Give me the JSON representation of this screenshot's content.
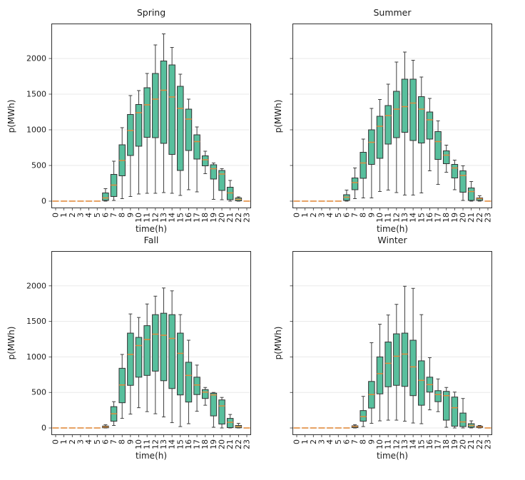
{
  "style": {
    "background": "#ffffff",
    "box_fill": "#58bf9d",
    "box_edge": "#333333",
    "median_color": "#e08b3d",
    "whisker_color": "#3f3f3f",
    "grid_color": "#eaeaea",
    "spine_color": "#2f2f2f",
    "text_color": "#1c1c1c"
  },
  "box_format": [
    "whislo",
    "q1",
    "median",
    "q3",
    "whishi"
  ],
  "chart_data": [
    {
      "type": "box",
      "title": "Spring",
      "xlabel": "time(h)",
      "ylabel": "p(MWh)",
      "grid": "horizontal",
      "legend": "none",
      "categories": [
        "0",
        "1",
        "2",
        "3",
        "4",
        "5",
        "6",
        "7",
        "8",
        "9",
        "10",
        "11",
        "12",
        "13",
        "14",
        "15",
        "16",
        "17",
        "18",
        "19",
        "20",
        "21",
        "22",
        "23"
      ],
      "yticks": [
        0,
        500,
        1000,
        1500,
        2000
      ],
      "ytick_labels_visible": true,
      "ylim": [
        -100,
        2490
      ],
      "boxes": [
        [
          0,
          0,
          0,
          0,
          0
        ],
        [
          0,
          0,
          0,
          0,
          0
        ],
        [
          0,
          0,
          0,
          0,
          0
        ],
        [
          0,
          0,
          0,
          0,
          0
        ],
        [
          0,
          0,
          0,
          0,
          0
        ],
        [
          0,
          0,
          0,
          0,
          0
        ],
        [
          0,
          10,
          45,
          115,
          175
        ],
        [
          10,
          65,
          225,
          375,
          560
        ],
        [
          35,
          355,
          570,
          790,
          1030
        ],
        [
          65,
          640,
          990,
          1215,
          1480
        ],
        [
          100,
          770,
          1240,
          1355,
          1550
        ],
        [
          110,
          895,
          1350,
          1590,
          1790
        ],
        [
          110,
          890,
          1430,
          1790,
          2190
        ],
        [
          120,
          810,
          1555,
          1965,
          2345
        ],
        [
          110,
          655,
          1460,
          1910,
          2155
        ],
        [
          80,
          430,
          1300,
          1610,
          1780
        ],
        [
          160,
          710,
          1150,
          1290,
          1430
        ],
        [
          130,
          590,
          835,
          930,
          1040
        ],
        [
          385,
          495,
          580,
          635,
          700
        ],
        [
          25,
          310,
          455,
          510,
          535
        ],
        [
          20,
          150,
          380,
          430,
          455
        ],
        [
          0,
          20,
          115,
          195,
          290
        ],
        [
          0,
          5,
          25,
          45,
          60
        ],
        [
          0,
          0,
          0,
          0,
          0
        ]
      ]
    },
    {
      "type": "box",
      "title": "Summer",
      "xlabel": "time(h)",
      "ylabel": "p(MWh)",
      "grid": "horizontal",
      "legend": "none",
      "categories": [
        "0",
        "1",
        "2",
        "3",
        "4",
        "5",
        "6",
        "7",
        "8",
        "9",
        "10",
        "11",
        "12",
        "13",
        "14",
        "15",
        "16",
        "17",
        "18",
        "19",
        "20",
        "21",
        "22",
        "23"
      ],
      "yticks": [
        0,
        500,
        1000,
        1500,
        2000
      ],
      "ytick_labels_visible": false,
      "ylim": [
        -100,
        2490
      ],
      "boxes": [
        [
          0,
          0,
          0,
          0,
          0
        ],
        [
          0,
          0,
          0,
          0,
          0
        ],
        [
          0,
          0,
          0,
          0,
          0
        ],
        [
          0,
          0,
          0,
          0,
          0
        ],
        [
          0,
          0,
          0,
          0,
          0
        ],
        [
          0,
          0,
          0,
          0,
          0
        ],
        [
          0,
          10,
          55,
          90,
          155
        ],
        [
          35,
          160,
          260,
          325,
          465
        ],
        [
          45,
          320,
          535,
          685,
          870
        ],
        [
          45,
          515,
          825,
          1000,
          1300
        ],
        [
          135,
          600,
          1050,
          1190,
          1425
        ],
        [
          155,
          800,
          1200,
          1340,
          1640
        ],
        [
          120,
          890,
          1290,
          1540,
          1950
        ],
        [
          85,
          965,
          1325,
          1710,
          2090
        ],
        [
          85,
          850,
          1375,
          1710,
          1975
        ],
        [
          115,
          815,
          1290,
          1465,
          1740
        ],
        [
          425,
          870,
          1140,
          1250,
          1440
        ],
        [
          235,
          585,
          835,
          975,
          1125
        ],
        [
          405,
          525,
          645,
          705,
          785
        ],
        [
          160,
          325,
          465,
          515,
          575
        ],
        [
          10,
          125,
          360,
          425,
          495
        ],
        [
          0,
          10,
          135,
          185,
          275
        ],
        [
          0,
          10,
          35,
          45,
          75
        ],
        [
          0,
          0,
          0,
          0,
          0
        ]
      ]
    },
    {
      "type": "box",
      "title": "Fall",
      "xlabel": "time(h)",
      "ylabel": "p(MWh)",
      "grid": "horizontal",
      "legend": "none",
      "categories": [
        "0",
        "1",
        "2",
        "3",
        "4",
        "5",
        "6",
        "7",
        "8",
        "9",
        "10",
        "11",
        "12",
        "13",
        "14",
        "15",
        "16",
        "17",
        "18",
        "19",
        "20",
        "21",
        "22",
        "23"
      ],
      "yticks": [
        0,
        500,
        1000,
        1500,
        2000
      ],
      "ytick_labels_visible": true,
      "ylim": [
        -100,
        2490
      ],
      "boxes": [
        [
          0,
          0,
          0,
          0,
          0
        ],
        [
          0,
          0,
          0,
          0,
          0
        ],
        [
          0,
          0,
          0,
          0,
          0
        ],
        [
          0,
          0,
          0,
          0,
          0
        ],
        [
          0,
          0,
          0,
          0,
          0
        ],
        [
          0,
          0,
          0,
          0,
          0
        ],
        [
          0,
          3,
          15,
          27,
          45
        ],
        [
          35,
          95,
          200,
          300,
          370
        ],
        [
          135,
          355,
          605,
          840,
          1035
        ],
        [
          195,
          600,
          1035,
          1335,
          1605
        ],
        [
          285,
          715,
          1160,
          1275,
          1555
        ],
        [
          230,
          740,
          1245,
          1440,
          1745
        ],
        [
          200,
          800,
          1320,
          1595,
          1855
        ],
        [
          155,
          665,
          1305,
          1615,
          1970
        ],
        [
          75,
          555,
          1260,
          1595,
          1930
        ],
        [
          20,
          465,
          1050,
          1335,
          1595
        ],
        [
          60,
          365,
          740,
          925,
          1235
        ],
        [
          235,
          470,
          605,
          715,
          885
        ],
        [
          320,
          415,
          505,
          540,
          570
        ],
        [
          10,
          170,
          465,
          490,
          500
        ],
        [
          0,
          55,
          310,
          395,
          430
        ],
        [
          0,
          5,
          80,
          135,
          190
        ],
        [
          0,
          3,
          18,
          35,
          65
        ],
        [
          0,
          0,
          0,
          0,
          0
        ]
      ]
    },
    {
      "type": "box",
      "title": "Winter",
      "xlabel": "time(h)",
      "ylabel": "p(MWh)",
      "grid": "horizontal",
      "legend": "none",
      "categories": [
        "0",
        "1",
        "2",
        "3",
        "4",
        "5",
        "6",
        "7",
        "8",
        "9",
        "10",
        "11",
        "12",
        "13",
        "14",
        "15",
        "16",
        "17",
        "18",
        "19",
        "20",
        "21",
        "22",
        "23"
      ],
      "yticks": [
        0,
        500,
        1000,
        1500,
        2000
      ],
      "ytick_labels_visible": false,
      "ylim": [
        -100,
        2490
      ],
      "boxes": [
        [
          0,
          0,
          0,
          0,
          0
        ],
        [
          0,
          0,
          0,
          0,
          0
        ],
        [
          0,
          0,
          0,
          0,
          0
        ],
        [
          0,
          0,
          0,
          0,
          0
        ],
        [
          0,
          0,
          0,
          0,
          0
        ],
        [
          0,
          0,
          0,
          0,
          0
        ],
        [
          0,
          0,
          0,
          0,
          0
        ],
        [
          0,
          5,
          20,
          30,
          45
        ],
        [
          20,
          95,
          160,
          245,
          445
        ],
        [
          65,
          280,
          470,
          655,
          1200
        ],
        [
          100,
          480,
          765,
          1000,
          1460
        ],
        [
          110,
          580,
          910,
          1210,
          1590
        ],
        [
          110,
          600,
          1010,
          1325,
          1740
        ],
        [
          95,
          585,
          1040,
          1335,
          1995
        ],
        [
          70,
          455,
          860,
          1235,
          1965
        ],
        [
          60,
          320,
          670,
          945,
          1595
        ],
        [
          255,
          505,
          610,
          715,
          990
        ],
        [
          230,
          370,
          470,
          525,
          690
        ],
        [
          10,
          110,
          455,
          515,
          570
        ],
        [
          0,
          25,
          285,
          435,
          505
        ],
        [
          0,
          20,
          85,
          210,
          415
        ],
        [
          0,
          10,
          35,
          60,
          100
        ],
        [
          0,
          5,
          15,
          25,
          35
        ],
        [
          0,
          0,
          0,
          0,
          0
        ]
      ]
    }
  ]
}
